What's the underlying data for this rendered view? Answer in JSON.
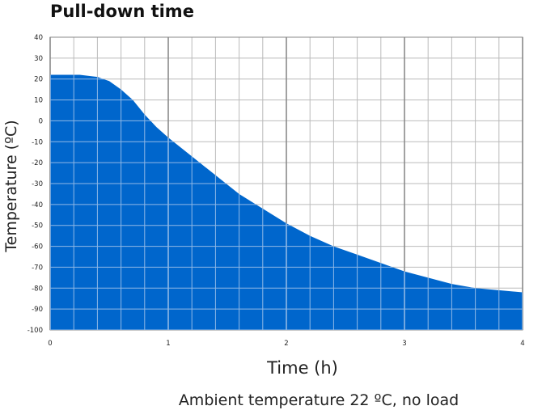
{
  "chart_data": {
    "type": "area",
    "title": "Pull-down time",
    "xlabel": "Time (h)",
    "ylabel": "Temperature (ºC)",
    "caption": "Ambient temperature 22 ºC, no load",
    "xlim": [
      0,
      4
    ],
    "ylim": [
      -100,
      40
    ],
    "x_ticks": [
      "0",
      "1",
      "2",
      "3",
      "4"
    ],
    "y_ticks": [
      "40",
      "30",
      "20",
      "10",
      "0",
      "-10",
      "-20",
      "-30",
      "-40",
      "-50",
      "-60",
      "-70",
      "-80",
      "-90",
      "-100"
    ],
    "grid": true,
    "fill_color": "#0066cc",
    "grid_color_fill": "#8fb8e6",
    "grid_color_bg": "#bbbbbb",
    "series": [
      {
        "x": [
          0,
          0.15,
          0.25,
          0.4,
          0.5,
          0.6,
          0.7,
          0.8,
          0.9,
          1.0,
          1.2,
          1.4,
          1.6,
          1.8,
          2.0,
          2.2,
          2.4,
          2.6,
          2.8,
          3.0,
          3.2,
          3.4,
          3.6,
          3.8,
          4.0
        ],
        "values": [
          22,
          22,
          22,
          21,
          19,
          15,
          10,
          3,
          -3,
          -8,
          -17,
          -26,
          -35,
          -42,
          -49,
          -55,
          -60,
          -64,
          -68,
          -72,
          -75,
          -78,
          -80,
          -81,
          -82
        ]
      }
    ]
  }
}
